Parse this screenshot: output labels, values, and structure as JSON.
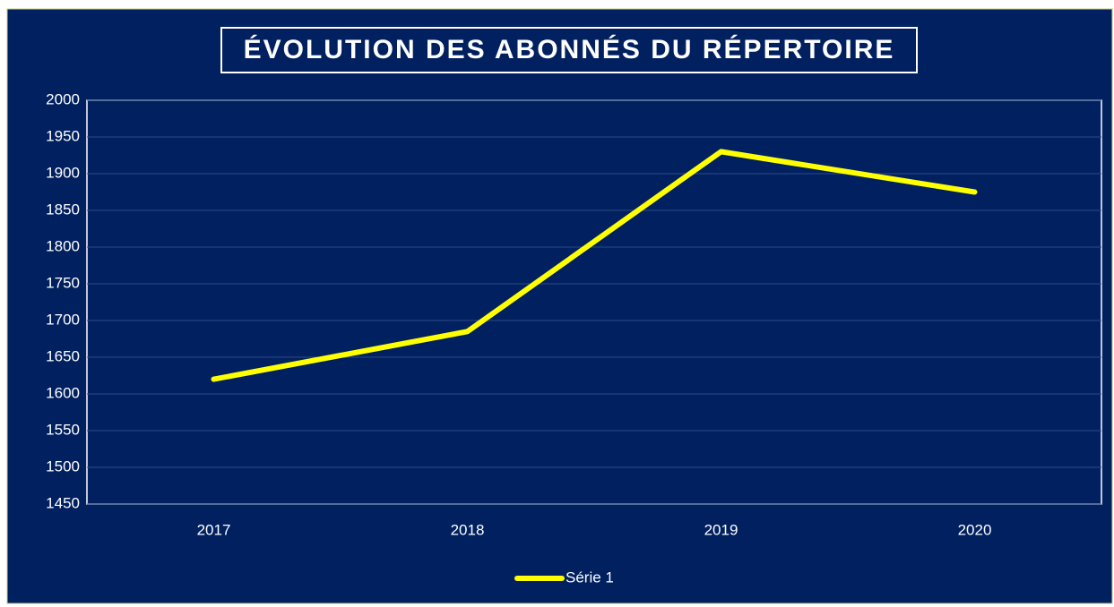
{
  "chart_data": {
    "type": "line",
    "title": "ÉVOLUTION DES ABONNÉS DU RÉPERTOIRE",
    "categories": [
      "2017",
      "2018",
      "2019",
      "2020"
    ],
    "series": [
      {
        "name": "Série 1",
        "color": "#ffff00",
        "values": [
          1620,
          1685,
          1930,
          1875
        ]
      }
    ],
    "ylim": [
      1450,
      2000
    ],
    "yticks": [
      1450,
      1500,
      1550,
      1600,
      1650,
      1700,
      1750,
      1800,
      1850,
      1900,
      1950,
      2000
    ],
    "grid": true,
    "legend": "bottom"
  }
}
